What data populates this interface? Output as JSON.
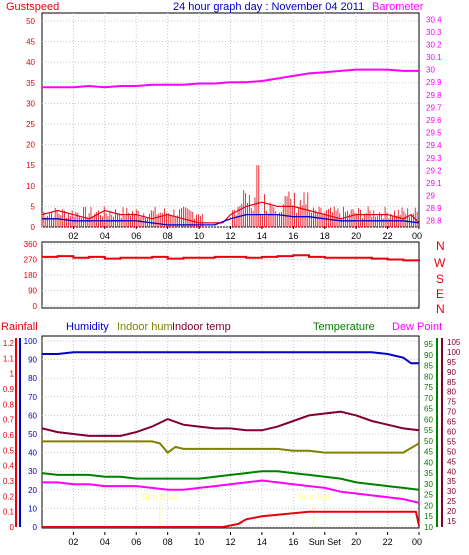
{
  "header": {
    "left_title": "Gustspeed",
    "center_title": "24 hour graph day : November 04 2011",
    "right_title": "Barometer"
  },
  "colors": {
    "gust": "#e8000e",
    "wind": "#0000c8",
    "baro": "#ff00ff",
    "dir": "#e8000e",
    "humidity": "#0000c8",
    "indoor_hum": "#808000",
    "indoor_temp": "#800033",
    "temperature": "#008000",
    "dewpoint": "#ff00ff",
    "rainfall": "#e8000e",
    "sun": "#ffff80"
  },
  "compass_letters": [
    "N",
    "W",
    "S",
    "E",
    "N"
  ],
  "bottom_legend": {
    "rainfall": "Rainfall",
    "humidity": "Humidity",
    "indoor_hum": "Indoor hum",
    "indoor_temp": "Indoor temp",
    "temperature": "Temperature",
    "dewpoint": "Dew Point"
  },
  "sun_labels": {
    "sunrise": "Sun Rise",
    "sunset": "Sun Set",
    "sunset_tick": "Sun Set"
  },
  "chart_data": [
    {
      "type": "line",
      "title": "24 hour graph day : November 04 2011",
      "x_ticks": [
        "02",
        "04",
        "06",
        "08",
        "10",
        "12",
        "14",
        "16",
        "18",
        "20",
        "22",
        "00"
      ],
      "x_hours": [
        2,
        4,
        6,
        8,
        10,
        12,
        14,
        16,
        18,
        20,
        22,
        24
      ],
      "xlim": [
        0,
        24
      ],
      "left_axis": {
        "label": "Gustspeed",
        "ticks": [
          "0",
          "5",
          "10",
          "15",
          "20",
          "25",
          "30",
          "35",
          "40",
          "45",
          "50"
        ],
        "ylim": [
          0,
          50
        ]
      },
      "right_axis": {
        "label": "Barometer",
        "ticks": [
          "28.8",
          "28.9",
          "29",
          "29.1",
          "29.2",
          "29.3",
          "29.4",
          "29.5",
          "29.6",
          "29.7",
          "29.8",
          "29.9",
          "30",
          "30.1",
          "30.2",
          "30.3",
          "30.4"
        ],
        "ylim": [
          28.75,
          30.45
        ]
      },
      "series": [
        {
          "name": "Barometer",
          "axis": "right",
          "x": [
            0,
            1,
            2,
            3,
            4,
            5,
            6,
            7,
            8,
            9,
            10,
            11,
            12,
            13,
            14,
            15,
            16,
            17,
            18,
            19,
            20,
            21,
            22,
            23,
            24
          ],
          "y": [
            29.86,
            29.86,
            29.86,
            29.87,
            29.86,
            29.87,
            29.87,
            29.88,
            29.88,
            29.88,
            29.89,
            29.89,
            29.9,
            29.9,
            29.91,
            29.93,
            29.95,
            29.97,
            29.98,
            29.99,
            30.0,
            30.0,
            30.0,
            29.99,
            29.99
          ]
        },
        {
          "name": "Gustspeed",
          "axis": "left",
          "x": [
            0,
            1,
            2,
            3,
            4,
            5,
            6,
            7,
            8,
            9,
            10,
            10.5,
            11,
            11.5,
            12,
            13,
            14,
            15,
            16,
            17,
            18,
            19,
            20,
            21,
            22,
            23,
            23.5,
            24
          ],
          "y": [
            3,
            4,
            3,
            2,
            4,
            3,
            3,
            2,
            3,
            2,
            1,
            1,
            1,
            1,
            3,
            5,
            6,
            5,
            5,
            4,
            3,
            2,
            3,
            3,
            3,
            2,
            3,
            1
          ]
        },
        {
          "name": "Windspeed",
          "axis": "left",
          "x": [
            0,
            1,
            2,
            3,
            4,
            5,
            6,
            7,
            8,
            9,
            10,
            11,
            12,
            13,
            14,
            15,
            16,
            17,
            18,
            19,
            20,
            21,
            22,
            23,
            24
          ],
          "y": [
            2,
            2,
            1.5,
            1.5,
            1.5,
            1.5,
            1.5,
            1,
            0.5,
            0.5,
            0.5,
            0.5,
            2,
            3,
            3,
            3,
            2.5,
            2.5,
            2,
            1.5,
            1.5,
            1.5,
            1.5,
            1.5,
            1
          ]
        }
      ]
    },
    {
      "type": "line",
      "title": "",
      "x_ticks": [
        "02",
        "04",
        "06",
        "08",
        "10",
        "12",
        "14",
        "16",
        "18",
        "20",
        "22",
        "00"
      ],
      "xlim": [
        0,
        24
      ],
      "left_axis": {
        "ticks": [
          "0",
          "90",
          "180",
          "270",
          "360"
        ],
        "ylim": [
          0,
          360
        ]
      },
      "series": [
        {
          "name": "",
          "x": [
            0,
            1,
            2,
            3,
            4,
            5,
            6,
            7,
            8,
            9,
            10,
            11,
            12,
            13,
            14,
            15,
            16,
            17,
            18,
            19,
            20,
            21,
            22,
            23,
            24
          ],
          "y": [
            285,
            290,
            280,
            285,
            275,
            280,
            280,
            285,
            275,
            280,
            280,
            285,
            285,
            280,
            285,
            290,
            295,
            285,
            280,
            280,
            280,
            275,
            270,
            265,
            260
          ]
        }
      ]
    },
    {
      "type": "line",
      "title": "",
      "x_ticks": [
        "02",
        "04",
        "06",
        "08",
        "10",
        "12",
        "14",
        "16",
        "Sun Set",
        "20",
        "22",
        "00"
      ],
      "xlim": [
        0,
        24
      ],
      "left_axis_rain": {
        "label": "Rainfall",
        "ticks": [
          "0",
          "0.1",
          "0.2",
          "0.3",
          "0.4",
          "0.5",
          "0.6",
          "0.7",
          "0.8",
          "0.9",
          "1",
          "1.1",
          "1.2"
        ],
        "ylim": [
          0,
          1.2
        ]
      },
      "left_axis_humidity": {
        "label": "Humidity",
        "ticks": [
          "0",
          "10",
          "20",
          "30",
          "40",
          "50",
          "60",
          "70",
          "80",
          "90",
          "100"
        ],
        "ylim": [
          0,
          100
        ]
      },
      "right_axis_temp": {
        "label": "Temperature",
        "ticks": [
          "10",
          "15",
          "20",
          "25",
          "30",
          "35",
          "40",
          "45",
          "50",
          "55",
          "60",
          "65",
          "70",
          "75",
          "80",
          "85",
          "90",
          "95"
        ],
        "ylim": [
          10,
          95
        ]
      },
      "right_axis_dew": {
        "label": "Dew Point",
        "ticks": [
          "15",
          "20",
          "25",
          "30",
          "35",
          "40",
          "45",
          "50",
          "55",
          "60",
          "65",
          "70",
          "75",
          "80",
          "85",
          "90",
          "95",
          "100",
          "105"
        ],
        "ylim": [
          12,
          105
        ]
      },
      "sunrise_hour": 7.5,
      "sunset_hour": 17.3,
      "series": [
        {
          "name": "Humidity",
          "axis": "humidity",
          "x": [
            0,
            1,
            2,
            3,
            4,
            5,
            6,
            7,
            8,
            9,
            10,
            11,
            12,
            13,
            14,
            15,
            16,
            17,
            18,
            19,
            20,
            21,
            22,
            23,
            23.5,
            24
          ],
          "y": [
            93,
            93,
            94,
            94,
            94,
            94,
            94,
            94,
            94,
            94,
            94,
            94,
            94,
            94,
            94,
            94,
            94,
            94,
            94,
            94,
            94,
            94,
            93,
            91,
            88,
            88
          ]
        },
        {
          "name": "Indoor hum",
          "axis": "humidity",
          "x": [
            0,
            1,
            2,
            3,
            4,
            5,
            6,
            7,
            7.5,
            8,
            8.5,
            9,
            10,
            11,
            12,
            13,
            14,
            15,
            16,
            17,
            18,
            19,
            20,
            21,
            22,
            23,
            24
          ],
          "y": [
            46,
            46,
            46,
            46,
            46,
            46,
            46,
            46,
            45,
            40,
            43,
            42,
            42,
            42,
            42,
            42,
            42,
            42,
            41,
            41,
            40,
            40,
            40,
            40,
            40,
            40,
            45
          ]
        },
        {
          "name": "Indoor temp",
          "axis": "humidity",
          "x": [
            0,
            1,
            2,
            3,
            4,
            5,
            6,
            7,
            8,
            9,
            10,
            11,
            12,
            13,
            14,
            15,
            16,
            17,
            18,
            19,
            20,
            21,
            22,
            23,
            24
          ],
          "y": [
            53,
            51,
            50,
            49,
            49,
            49,
            51,
            54,
            58,
            55,
            54,
            53,
            53,
            52,
            52,
            54,
            57,
            60,
            61,
            62,
            60,
            57,
            55,
            53,
            52
          ]
        },
        {
          "name": "Temperature",
          "axis": "humidity",
          "x": [
            0,
            1,
            2,
            3,
            4,
            5,
            6,
            7,
            8,
            9,
            10,
            11,
            12,
            13,
            14,
            15,
            16,
            17,
            18,
            19,
            20,
            21,
            22,
            23,
            24
          ],
          "y": [
            29,
            28,
            28,
            28,
            27,
            27,
            26,
            26,
            26,
            26,
            26,
            27,
            28,
            29,
            30,
            30,
            29,
            28,
            27,
            26,
            24,
            23,
            22,
            21,
            20
          ]
        },
        {
          "name": "Dew Point",
          "axis": "humidity",
          "x": [
            0,
            1,
            2,
            3,
            4,
            5,
            6,
            7,
            8,
            9,
            10,
            11,
            12,
            13,
            14,
            15,
            16,
            17,
            18,
            19,
            20,
            21,
            22,
            23,
            24
          ],
          "y": [
            24,
            24,
            23,
            23,
            22,
            22,
            22,
            21,
            20,
            20,
            21,
            22,
            23,
            24,
            25,
            24,
            23,
            22,
            21,
            19,
            18,
            17,
            16,
            15,
            13
          ]
        },
        {
          "name": "Rainfall",
          "axis": "rain",
          "x": [
            0,
            2,
            4,
            6,
            8,
            10,
            11.5,
            12,
            12.5,
            13,
            14,
            15,
            16,
            17,
            18,
            19,
            20,
            21,
            22,
            23,
            23.8,
            24
          ],
          "y": [
            0,
            0,
            0,
            0,
            0,
            0,
            0,
            0.01,
            0.02,
            0.05,
            0.07,
            0.08,
            0.09,
            0.1,
            0.1,
            0.1,
            0.1,
            0.1,
            0.1,
            0.1,
            0.1,
            0.01
          ]
        }
      ]
    }
  ]
}
